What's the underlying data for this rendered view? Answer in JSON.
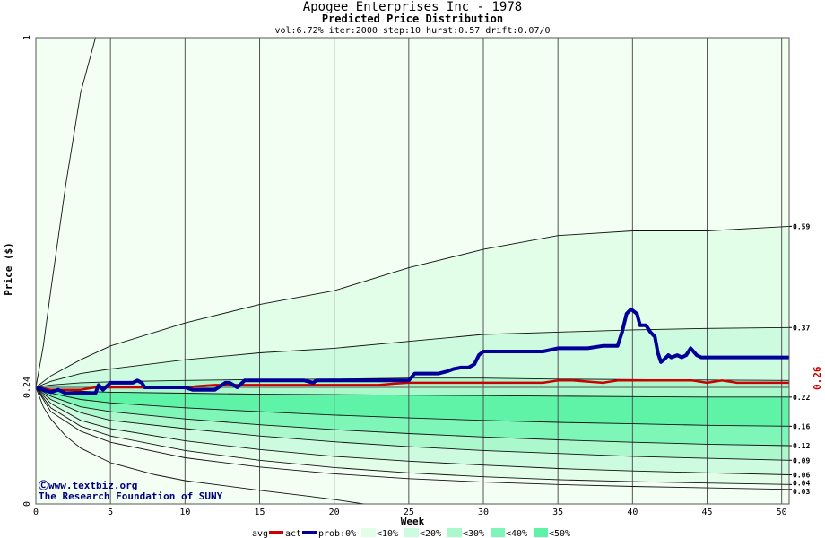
{
  "colors": {
    "background": "#f2fff2",
    "band_10": "#e2fde8",
    "band_20": "#cdfbe0",
    "band_30": "#abf8cc",
    "band_40": "#7ef6b8",
    "band_50": "#5ff3a8",
    "avg_line": "#cc0000",
    "act_line": "#000099",
    "grid": "#555555",
    "credit": "#000080"
  },
  "chart_data": {
    "type": "line",
    "title": "Apogee Enterprises Inc - 1978",
    "subtitle": "Predicted Price Distribution",
    "params": "vol:6.72% iter:2000 step:10 hurst:0.57 drift:0.07/0",
    "xlabel": "Week",
    "ylabel": "Price ($)",
    "xlim": [
      0,
      50.5
    ],
    "ylim": [
      0,
      1
    ],
    "x_ticks": [
      0,
      5,
      10,
      15,
      20,
      25,
      30,
      35,
      40,
      45,
      50
    ],
    "y_ticks": [
      "0",
      "0.24",
      "1"
    ],
    "y_tick_values": [
      0,
      0.24,
      1
    ],
    "scale_note": "y axis drawn with piecewise scale: tick 0.24 sits at 75% of height",
    "right_labels": [
      "0.59",
      "0.37",
      "0.22",
      "0.16",
      "0.12",
      "0.09",
      "0.06",
      "0.04",
      "0.03"
    ],
    "right_label_values": [
      0.59,
      0.37,
      0.22,
      0.16,
      0.12,
      0.09,
      0.06,
      0.04,
      0.03
    ],
    "current_price_label": "0.26",
    "legend": {
      "avg": "avg",
      "act": "act",
      "prob": "prob:0%",
      "bands": [
        "<10%",
        "<20%",
        "<30%",
        "<40%",
        "<50%"
      ]
    },
    "credit_lines": [
      "Ⓒwww.textbiz.org",
      "The Research Foundation of SUNY"
    ],
    "percentile_curves": [
      {
        "name": "p00",
        "x": [
          0,
          0.5,
          1,
          2,
          3,
          4
        ],
        "y": [
          0.24,
          0.33,
          0.45,
          0.68,
          0.88,
          1.0
        ]
      },
      {
        "name": "p10",
        "x": [
          0,
          1,
          3,
          5,
          10,
          15,
          20,
          25,
          30,
          35,
          40,
          45,
          50.5
        ],
        "y": [
          0.24,
          0.265,
          0.3,
          0.33,
          0.38,
          0.42,
          0.45,
          0.5,
          0.54,
          0.57,
          0.58,
          0.58,
          0.59
        ]
      },
      {
        "name": "p20",
        "x": [
          0,
          1,
          3,
          5,
          10,
          15,
          20,
          25,
          30,
          35,
          40,
          45,
          50.5
        ],
        "y": [
          0.24,
          0.253,
          0.27,
          0.28,
          0.3,
          0.315,
          0.325,
          0.34,
          0.355,
          0.36,
          0.365,
          0.368,
          0.37
        ]
      },
      {
        "name": "p30",
        "x": [
          0,
          1,
          3,
          5,
          10,
          15,
          20,
          25,
          30,
          35,
          40,
          45,
          50.5
        ],
        "y": [
          0.24,
          0.245,
          0.25,
          0.252,
          0.255,
          0.257,
          0.258,
          0.26,
          0.26,
          0.258,
          0.257,
          0.256,
          0.255
        ]
      },
      {
        "name": "p40",
        "x": [
          0,
          1,
          3,
          5,
          10,
          15,
          20,
          25,
          30,
          35,
          40,
          45,
          50.5
        ],
        "y": [
          0.24,
          0.235,
          0.232,
          0.23,
          0.228,
          0.226,
          0.225,
          0.224,
          0.223,
          0.222,
          0.221,
          0.22,
          0.22
        ]
      },
      {
        "name": "p50",
        "x": [
          0,
          1,
          3,
          5,
          10,
          15,
          20,
          25,
          30,
          35,
          40,
          45,
          50.5
        ],
        "y": [
          0.24,
          0.228,
          0.215,
          0.208,
          0.198,
          0.19,
          0.183,
          0.177,
          0.172,
          0.168,
          0.165,
          0.162,
          0.16
        ]
      },
      {
        "name": "p60",
        "x": [
          0,
          1,
          3,
          5,
          10,
          15,
          20,
          25,
          30,
          35,
          40,
          45,
          50.5
        ],
        "y": [
          0.24,
          0.222,
          0.2,
          0.19,
          0.175,
          0.163,
          0.153,
          0.145,
          0.138,
          0.132,
          0.127,
          0.123,
          0.12
        ]
      },
      {
        "name": "p70",
        "x": [
          0,
          1,
          3,
          5,
          10,
          15,
          20,
          25,
          30,
          35,
          40,
          45,
          50.5
        ],
        "y": [
          0.24,
          0.215,
          0.188,
          0.172,
          0.155,
          0.14,
          0.128,
          0.118,
          0.11,
          0.104,
          0.098,
          0.094,
          0.09
        ]
      },
      {
        "name": "p80",
        "x": [
          0,
          1,
          3,
          5,
          10,
          15,
          20,
          25,
          30,
          35,
          40,
          45,
          50.5
        ],
        "y": [
          0.24,
          0.207,
          0.172,
          0.155,
          0.13,
          0.112,
          0.098,
          0.088,
          0.08,
          0.073,
          0.068,
          0.064,
          0.06
        ]
      },
      {
        "name": "p90",
        "x": [
          0,
          1,
          3,
          5,
          10,
          15,
          20,
          25,
          30,
          35,
          40,
          45,
          50.5
        ],
        "y": [
          0.24,
          0.198,
          0.16,
          0.14,
          0.11,
          0.09,
          0.075,
          0.064,
          0.056,
          0.05,
          0.046,
          0.043,
          0.04
        ]
      },
      {
        "name": "p95",
        "x": [
          0,
          1,
          3,
          5,
          10,
          15,
          20,
          25,
          30,
          35,
          40,
          45,
          50.5
        ],
        "y": [
          0.24,
          0.19,
          0.15,
          0.127,
          0.095,
          0.076,
          0.062,
          0.052,
          0.045,
          0.04,
          0.036,
          0.033,
          0.03
        ]
      },
      {
        "name": "p99",
        "x": [
          0,
          0.5,
          1,
          2,
          3,
          5,
          8,
          10,
          12,
          15,
          18,
          20,
          22
        ],
        "y": [
          0.24,
          0.2,
          0.175,
          0.14,
          0.115,
          0.085,
          0.06,
          0.048,
          0.04,
          0.028,
          0.017,
          0.009,
          0.0
        ]
      }
    ],
    "bands": [
      {
        "name": "<10%",
        "upper": "p10",
        "lower": "p90",
        "color_key": "band_10"
      },
      {
        "name": "<20%",
        "upper": "p20",
        "lower": "p80",
        "color_key": "band_20"
      },
      {
        "name": "<30%",
        "upper": "p30",
        "lower": "p70",
        "color_key": "band_30"
      },
      {
        "name": "<40%",
        "upper": "p40",
        "lower": "p60",
        "color_key": "band_40"
      },
      {
        "name": "<50%",
        "upper": "p50",
        "lower": "p50",
        "color_key": "band_50"
      }
    ],
    "series": [
      {
        "name": "avg",
        "color_key": "avg_line",
        "x": [
          0,
          1,
          3,
          4,
          6,
          9,
          10,
          11,
          12,
          20,
          23,
          24,
          25,
          30,
          34,
          35,
          36,
          38,
          39,
          40,
          44,
          45,
          46,
          47,
          50.5
        ],
        "y": [
          0.24,
          0.235,
          0.235,
          0.24,
          0.24,
          0.24,
          0.24,
          0.243,
          0.245,
          0.245,
          0.245,
          0.248,
          0.25,
          0.25,
          0.25,
          0.255,
          0.255,
          0.25,
          0.255,
          0.255,
          0.255,
          0.25,
          0.255,
          0.25,
          0.25
        ]
      },
      {
        "name": "act",
        "color_key": "act_line",
        "x": [
          0,
          0.5,
          1,
          1.5,
          2,
          2.5,
          3,
          4,
          4.2,
          4.5,
          5,
          5.3,
          6.5,
          6.8,
          7.1,
          7.3,
          8,
          9,
          10,
          10.5,
          11,
          12,
          12.7,
          13,
          13.5,
          14,
          14.5,
          15,
          16,
          17,
          18,
          18.6,
          18.8,
          19,
          20,
          22,
          24,
          25,
          25.4,
          25.6,
          27,
          27.6,
          28,
          28.5,
          29,
          29.4,
          29.7,
          30,
          31,
          34,
          35,
          37,
          38,
          39,
          39.3,
          39.6,
          39.9,
          40.3,
          40.5,
          40.9,
          41.2,
          41.5,
          41.7,
          41.9,
          42.1,
          42.4,
          42.6,
          43,
          43.3,
          43.6,
          43.9,
          44.3,
          44.6,
          45,
          50.5
        ],
        "y": [
          0.24,
          0.235,
          0.23,
          0.235,
          0.228,
          0.228,
          0.228,
          0.228,
          0.245,
          0.235,
          0.25,
          0.25,
          0.25,
          0.255,
          0.25,
          0.24,
          0.24,
          0.24,
          0.24,
          0.235,
          0.235,
          0.235,
          0.25,
          0.25,
          0.24,
          0.255,
          0.255,
          0.255,
          0.255,
          0.255,
          0.255,
          0.25,
          0.255,
          0.255,
          0.255,
          0.255,
          0.255,
          0.255,
          0.27,
          0.27,
          0.27,
          0.275,
          0.28,
          0.283,
          0.283,
          0.29,
          0.31,
          0.318,
          0.318,
          0.318,
          0.325,
          0.325,
          0.33,
          0.33,
          0.36,
          0.4,
          0.41,
          0.4,
          0.375,
          0.375,
          0.36,
          0.35,
          0.315,
          0.295,
          0.3,
          0.31,
          0.305,
          0.31,
          0.305,
          0.31,
          0.325,
          0.31,
          0.305,
          0.305,
          0.305
        ]
      }
    ]
  }
}
